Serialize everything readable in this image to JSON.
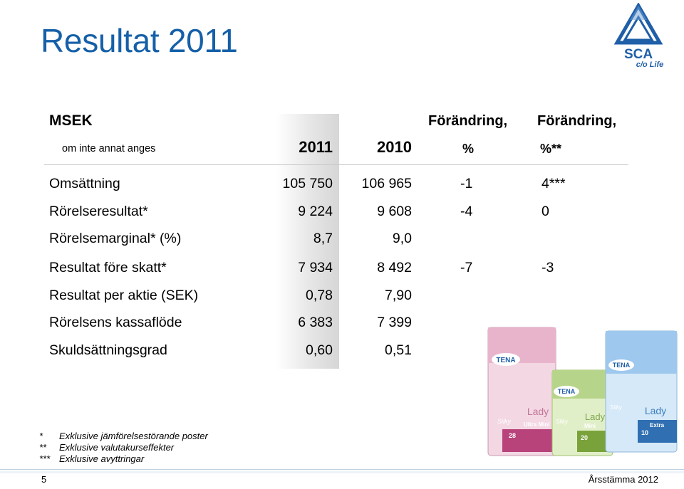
{
  "title": "Resultat 2011",
  "logo": {
    "text": "SCA",
    "tagline": "c/o Life"
  },
  "table": {
    "header": {
      "unit": "MSEK",
      "unit_note": "om inte annat anges",
      "year_2011": "2011",
      "year_2010": "2010",
      "change1_line1": "Förändring,",
      "change1_line2": "%",
      "change2_line1": "Förändring,",
      "change2_line2": "%**"
    },
    "rows": [
      {
        "label": "Omsättning",
        "v2011": "105 750",
        "v2010": "106 965",
        "change": "-1",
        "change_adj": "4***"
      },
      {
        "label": "Rörelseresultat*",
        "v2011": "9 224",
        "v2010": "9 608",
        "change": "-4",
        "change_adj": "0"
      },
      {
        "label": "Rörelsemarginal* (%)",
        "v2011": "8,7",
        "v2010": "9,0",
        "change": "",
        "change_adj": ""
      },
      {
        "label": "Resultat före skatt*",
        "v2011": "7 934",
        "v2010": "8 492",
        "change": "-7",
        "change_adj": "-3"
      },
      {
        "label": "Resultat per aktie (SEK)",
        "v2011": "0,78",
        "v2010": "7,90",
        "change": "",
        "change_adj": ""
      },
      {
        "label": "Rörelsens kassaflöde",
        "v2011": "6 383",
        "v2010": "7 399",
        "change": "",
        "change_adj": ""
      },
      {
        "label": "Skuldsättningsgrad",
        "v2011": "0,60",
        "v2010": "0,51",
        "change": "",
        "change_adj": ""
      }
    ]
  },
  "footnotes": [
    {
      "mark": "*",
      "text": "Exklusive jämförelsestörande poster"
    },
    {
      "mark": "**",
      "text": "Exklusive valutakurseffekter"
    },
    {
      "mark": "***",
      "text": "Exklusive avyttringar"
    }
  ],
  "products_image": {
    "brand": "TENA",
    "items": [
      {
        "line": "Lady",
        "variant": "Silky",
        "count": "28",
        "size": "Ultra Mini",
        "color": "#e8b4cc"
      },
      {
        "line": "Lady",
        "variant": "Silky",
        "count": "20",
        "size": "Mini",
        "color": "#b7d58a"
      },
      {
        "line": "Lady",
        "variant": "Silky",
        "count": "10",
        "size": "Extra",
        "color": "#9ec8ee"
      }
    ]
  },
  "footer": {
    "page": "5",
    "event": "Årsstämma 2012"
  },
  "colors": {
    "title": "#1560a8",
    "logo_blue": "#1f5fa8"
  }
}
